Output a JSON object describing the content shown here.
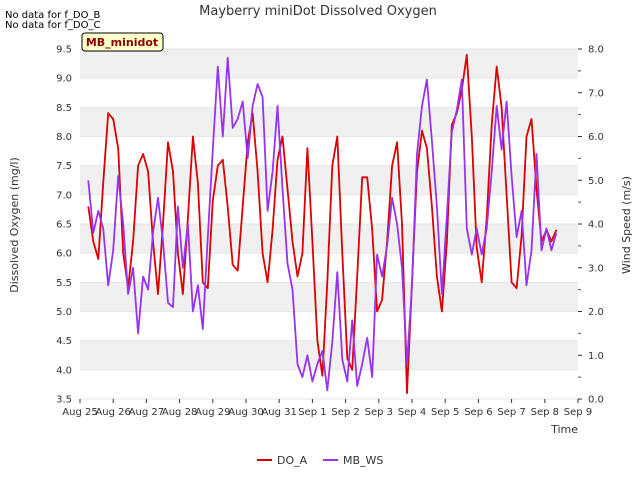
{
  "notes": [
    "No data for f_DO_B",
    "No data for f_DO_C"
  ],
  "chart_data": {
    "type": "line",
    "title": "Mayberry miniDot Dissolved Oxygen",
    "badge": "MB_minidot",
    "xlabel": "Time",
    "ylabel": "Dissolved Oxygen (mg/l)",
    "y2label": "Wind Speed (m/s)",
    "x_ticks": [
      "Aug 25",
      "Aug 26",
      "Aug 27",
      "Aug 28",
      "Aug 29",
      "Aug 30",
      "Aug 31",
      "Sep 1",
      "Sep 2",
      "Sep 3",
      "Sep 4",
      "Sep 5",
      "Sep 6",
      "Sep 7",
      "Sep 8",
      "Sep 9"
    ],
    "xlim": [
      0,
      15
    ],
    "ylim": [
      3.5,
      9.5
    ],
    "y_ticks": [
      "3.5",
      "4.0",
      "4.5",
      "5.0",
      "5.5",
      "6.0",
      "6.5",
      "7.0",
      "7.5",
      "8.0",
      "8.5",
      "9.0",
      "9.5"
    ],
    "y2lim": [
      0,
      8
    ],
    "y2_ticks": [
      "0.0",
      "1.0",
      "2.0",
      "3.0",
      "4.0",
      "5.0",
      "6.0",
      "7.0",
      "8.0"
    ],
    "grid": "horizontal bands",
    "legend_position": "bottom-center",
    "colors": {
      "DO_A": "#dd0000",
      "MB_WS": "#9933ee",
      "band": "#f0f0f0"
    },
    "series": [
      {
        "name": "DO_A",
        "axis": "left",
        "x": [
          0.25,
          0.4,
          0.55,
          0.7,
          0.85,
          1.0,
          1.15,
          1.3,
          1.45,
          1.6,
          1.75,
          1.9,
          2.05,
          2.2,
          2.35,
          2.5,
          2.65,
          2.8,
          2.95,
          3.1,
          3.25,
          3.4,
          3.55,
          3.7,
          3.85,
          4.0,
          4.15,
          4.3,
          4.45,
          4.6,
          4.75,
          4.9,
          5.05,
          5.2,
          5.35,
          5.5,
          5.65,
          5.8,
          5.95,
          6.1,
          6.25,
          6.4,
          6.55,
          6.7,
          6.85,
          7.0,
          7.15,
          7.3,
          7.45,
          7.6,
          7.75,
          7.9,
          8.05,
          8.2,
          8.35,
          8.5,
          8.65,
          8.8,
          8.95,
          9.1,
          9.25,
          9.4,
          9.55,
          9.7,
          9.85,
          10.0,
          10.15,
          10.3,
          10.45,
          10.6,
          10.75,
          10.9,
          11.05,
          11.2,
          11.35,
          11.5,
          11.65,
          11.8,
          11.95,
          12.1,
          12.25,
          12.4,
          12.55,
          12.7,
          12.85,
          13.0,
          13.15,
          13.3,
          13.45,
          13.6,
          13.75,
          13.9,
          14.05,
          14.2,
          14.35
        ],
        "values": [
          6.8,
          6.2,
          5.9,
          7.2,
          8.4,
          8.3,
          7.8,
          6.0,
          5.4,
          6.2,
          7.5,
          7.7,
          7.4,
          6.2,
          5.3,
          6.5,
          7.9,
          7.4,
          6.0,
          5.3,
          6.6,
          8.0,
          7.2,
          5.5,
          5.4,
          6.9,
          7.5,
          7.6,
          6.8,
          5.8,
          5.7,
          6.8,
          7.9,
          8.4,
          7.4,
          6.0,
          5.5,
          6.4,
          7.6,
          8.0,
          7.1,
          6.2,
          5.6,
          6.0,
          7.8,
          6.2,
          4.5,
          3.9,
          5.5,
          7.5,
          8.0,
          6.0,
          4.2,
          4.0,
          5.6,
          7.3,
          7.3,
          6.4,
          5.0,
          5.2,
          6.2,
          7.5,
          7.9,
          6.5,
          3.6,
          5.5,
          7.4,
          8.1,
          7.8,
          6.8,
          5.6,
          5.0,
          6.2,
          8.2,
          8.4,
          8.8,
          9.4,
          8.0,
          6.1,
          5.5,
          6.6,
          8.2,
          9.2,
          8.5,
          7.0,
          5.5,
          5.4,
          6.3,
          8.0,
          8.3,
          7.1,
          6.2,
          6.4,
          6.2,
          6.4
        ]
      },
      {
        "name": "MB_WS",
        "axis": "right",
        "x": [
          0.25,
          0.4,
          0.55,
          0.7,
          0.85,
          1.0,
          1.15,
          1.3,
          1.45,
          1.6,
          1.75,
          1.9,
          2.05,
          2.2,
          2.35,
          2.5,
          2.65,
          2.8,
          2.95,
          3.1,
          3.25,
          3.4,
          3.55,
          3.7,
          3.85,
          4.0,
          4.15,
          4.3,
          4.45,
          4.6,
          4.75,
          4.9,
          5.05,
          5.2,
          5.35,
          5.5,
          5.65,
          5.8,
          5.95,
          6.1,
          6.25,
          6.4,
          6.55,
          6.7,
          6.85,
          7.0,
          7.15,
          7.3,
          7.45,
          7.6,
          7.75,
          7.9,
          8.05,
          8.2,
          8.35,
          8.5,
          8.65,
          8.8,
          8.95,
          9.1,
          9.25,
          9.4,
          9.55,
          9.7,
          9.85,
          10.0,
          10.15,
          10.3,
          10.45,
          10.6,
          10.75,
          10.9,
          11.05,
          11.2,
          11.35,
          11.5,
          11.65,
          11.8,
          11.95,
          12.1,
          12.25,
          12.4,
          12.55,
          12.7,
          12.85,
          13.0,
          13.15,
          13.3,
          13.45,
          13.6,
          13.75,
          13.9,
          14.05,
          14.2,
          14.35
        ],
        "values": [
          5.0,
          3.8,
          4.3,
          3.9,
          2.6,
          3.4,
          5.1,
          4.0,
          2.4,
          3.0,
          1.5,
          2.8,
          2.5,
          3.8,
          4.6,
          3.6,
          2.2,
          2.1,
          4.4,
          3.0,
          4.0,
          2.0,
          2.6,
          1.6,
          3.7,
          5.7,
          7.6,
          6.0,
          7.8,
          6.2,
          6.4,
          6.8,
          5.5,
          6.7,
          7.2,
          6.9,
          4.3,
          5.2,
          6.7,
          4.8,
          3.1,
          2.5,
          0.8,
          0.5,
          1.0,
          0.4,
          0.8,
          1.1,
          0.2,
          1.3,
          2.9,
          0.9,
          0.4,
          1.8,
          0.3,
          0.8,
          1.4,
          0.5,
          3.3,
          2.8,
          3.5,
          4.6,
          4.0,
          3.0,
          0.8,
          2.6,
          5.6,
          6.7,
          7.3,
          5.9,
          4.4,
          2.4,
          4.2,
          6.1,
          6.6,
          7.3,
          3.9,
          3.3,
          3.9,
          3.3,
          3.9,
          5.2,
          6.7,
          5.7,
          6.8,
          5.1,
          3.7,
          4.3,
          2.6,
          3.4,
          5.6,
          3.4,
          3.9,
          3.4,
          3.8
        ]
      }
    ]
  }
}
